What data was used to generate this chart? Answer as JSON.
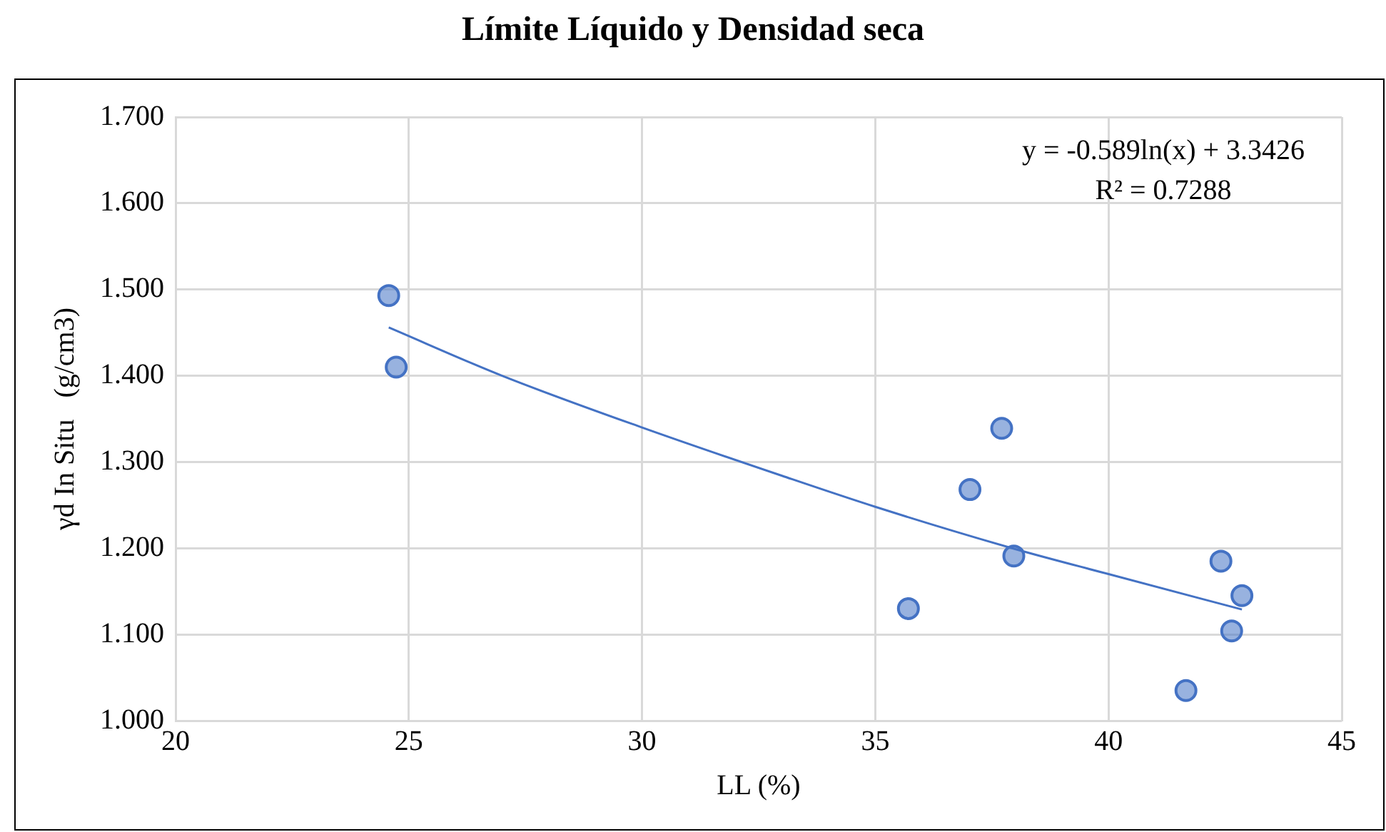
{
  "chart_data": {
    "type": "scatter",
    "title": "Límite Líquido y Densidad seca",
    "xlabel": "LL (%)",
    "ylabel": "γd In Situ   (g/cm3)",
    "xlim": [
      20,
      45
    ],
    "xticks": [
      20,
      25,
      30,
      35,
      40,
      45
    ],
    "ylim": [
      1.0,
      1.7
    ],
    "yticks": [
      {
        "value": 1.0,
        "label": "1.000"
      },
      {
        "value": 1.1,
        "label": "1.100"
      },
      {
        "value": 1.2,
        "label": "1.200"
      },
      {
        "value": 1.3,
        "label": "1.300"
      },
      {
        "value": 1.4,
        "label": "1.400"
      },
      {
        "value": 1.5,
        "label": "1.500"
      },
      {
        "value": 1.6,
        "label": "1.600"
      },
      {
        "value": 1.7,
        "label": "1.700"
      }
    ],
    "grid": true,
    "legend": false,
    "annotations": [
      "y = -0.589ln(x) + 3.3426",
      "R² = 0.7288"
    ],
    "series": [
      {
        "marker": "circle",
        "color": "#4472c4",
        "x": [
          24.57,
          24.73,
          37.71,
          37.03,
          37.97,
          35.71,
          42.41,
          42.86,
          42.64,
          41.66
        ],
        "values": [
          1.493,
          1.41,
          1.339,
          1.268,
          1.191,
          1.13,
          1.185,
          1.145,
          1.104,
          1.035
        ]
      },
      {
        "type": "line",
        "marker": "none",
        "color": "#4472c4",
        "x": [
          24.57,
          27,
          30,
          33,
          35,
          38,
          40,
          42.86
        ],
        "values": [
          1.456,
          1.4,
          1.34,
          1.284,
          1.248,
          1.199,
          1.17,
          1.129
        ]
      }
    ]
  }
}
